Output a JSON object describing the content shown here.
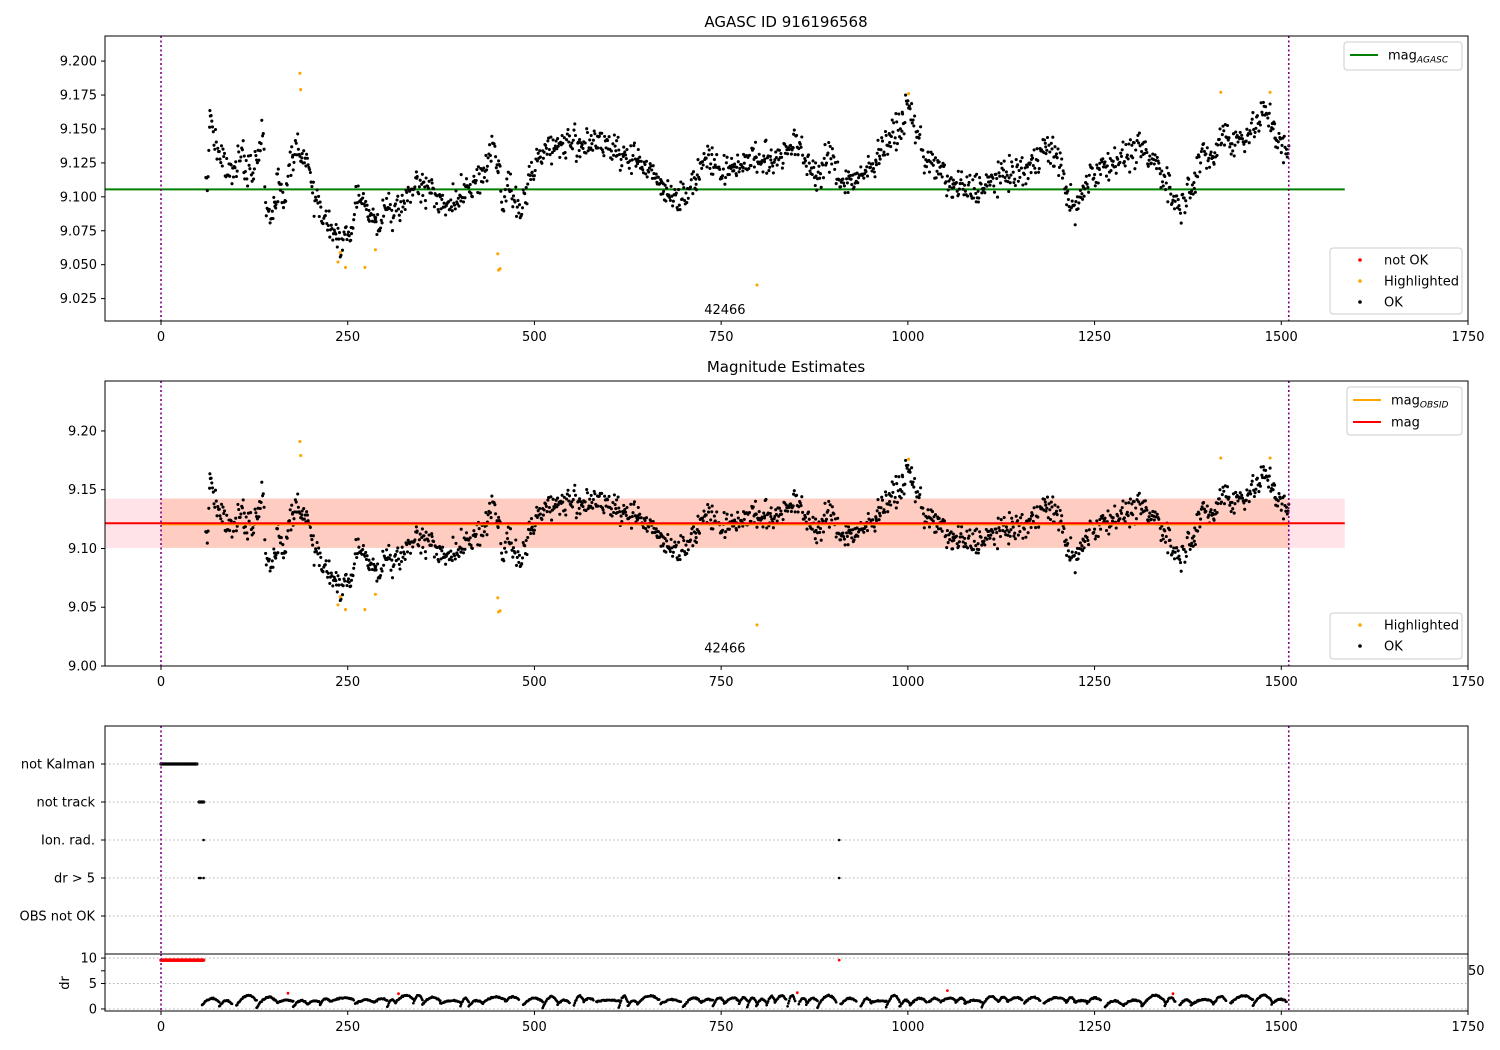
{
  "colors": {
    "ok": "#000000",
    "highlighted": "#ffa500",
    "not_ok": "#ff0000",
    "mag_agasc": "#008000",
    "mag_obsid": "#ffa500",
    "mag": "#ff0000",
    "band_outer": "#ffc0cb",
    "band_inner": "#ffc29a",
    "obs_boundary": "#800080",
    "grid": "#b0b0b0"
  },
  "chart_data": [
    {
      "type": "scatter",
      "title": "AGASC ID 916196568",
      "xlabel": "",
      "ylabel": "",
      "xlim": [
        -75,
        1750
      ],
      "ylim": [
        9.0085,
        9.2185
      ],
      "x_ticks": [
        "0",
        "250",
        "500",
        "750",
        "1000",
        "1250",
        "1500",
        "1750"
      ],
      "y_ticks": [
        "9.025",
        "9.050",
        "9.075",
        "9.100",
        "9.125",
        "9.150",
        "9.175",
        "9.200"
      ],
      "obs_boundaries": [
        0,
        1510
      ],
      "obsid_annotation": {
        "text": "42466",
        "x": 755,
        "y": 9.0135
      },
      "reference_lines": [
        {
          "name": "mag",
          "name_subscript": "AGASC",
          "y": 9.1055,
          "x_range": [
            -75,
            1585
          ],
          "color": "#008000"
        }
      ],
      "series": [
        {
          "name": "not OK",
          "color": "#ff0000",
          "points": []
        },
        {
          "name": "Highlighted",
          "color": "#ffa500",
          "points": [
            [
              186,
              9.191
            ],
            [
              187,
              9.179
            ],
            [
              237,
              9.052
            ],
            [
              240,
              9.059
            ],
            [
              247,
              9.048
            ],
            [
              273,
              9.048
            ],
            [
              287,
              9.061
            ],
            [
              451,
              9.058
            ],
            [
              452,
              9.046
            ],
            [
              454,
              9.047
            ],
            [
              798,
              9.035
            ],
            [
              1001,
              9.176
            ],
            [
              1419,
              9.177
            ],
            [
              1485,
              9.177
            ]
          ]
        },
        {
          "name": "OK",
          "color": "#000000",
          "description": "continuous light curve of ~1450 samples, x 60-1510",
          "anchors": [
            [
              62,
              9.11
            ],
            [
              66,
              9.16
            ],
            [
              72,
              9.14
            ],
            [
              80,
              9.13
            ],
            [
              90,
              9.12
            ],
            [
              105,
              9.13
            ],
            [
              115,
              9.12
            ],
            [
              125,
              9.12
            ],
            [
              137,
              9.15
            ],
            [
              140,
              9.1
            ],
            [
              147,
              9.08
            ],
            [
              157,
              9.11
            ],
            [
              165,
              9.1
            ],
            [
              175,
              9.13
            ],
            [
              182,
              9.14
            ],
            [
              190,
              9.13
            ],
            [
              198,
              9.12
            ],
            [
              206,
              9.1
            ],
            [
              213,
              9.093
            ],
            [
              220,
              9.085
            ],
            [
              228,
              9.073
            ],
            [
              238,
              9.07
            ],
            [
              252,
              9.068
            ],
            [
              262,
              9.1
            ],
            [
              272,
              9.1
            ],
            [
              282,
              9.085
            ],
            [
              292,
              9.075
            ],
            [
              302,
              9.095
            ],
            [
              312,
              9.085
            ],
            [
              322,
              9.09
            ],
            [
              332,
              9.105
            ],
            [
              345,
              9.107
            ],
            [
              360,
              9.105
            ],
            [
              372,
              9.1
            ],
            [
              382,
              9.092
            ],
            [
              392,
              9.095
            ],
            [
              400,
              9.102
            ],
            [
              410,
              9.103
            ],
            [
              420,
              9.112
            ],
            [
              432,
              9.115
            ],
            [
              438,
              9.128
            ],
            [
              445,
              9.143
            ],
            [
              452,
              9.122
            ],
            [
              458,
              9.093
            ],
            [
              466,
              9.113
            ],
            [
              472,
              9.1
            ],
            [
              478,
              9.09
            ],
            [
              485,
              9.09
            ],
            [
              495,
              9.118
            ],
            [
              505,
              9.128
            ],
            [
              515,
              9.135
            ],
            [
              530,
              9.137
            ],
            [
              550,
              9.14
            ],
            [
              575,
              9.138
            ],
            [
              600,
              9.137
            ],
            [
              630,
              9.128
            ],
            [
              650,
              9.122
            ],
            [
              670,
              9.11
            ],
            [
              685,
              9.1
            ],
            [
              700,
              9.1
            ],
            [
              715,
              9.113
            ],
            [
              727,
              9.13
            ],
            [
              740,
              9.128
            ],
            [
              752,
              9.12
            ],
            [
              770,
              9.122
            ],
            [
              790,
              9.128
            ],
            [
              810,
              9.125
            ],
            [
              830,
              9.132
            ],
            [
              850,
              9.14
            ],
            [
              865,
              9.125
            ],
            [
              880,
              9.115
            ],
            [
              895,
              9.13
            ],
            [
              910,
              9.113
            ],
            [
              930,
              9.112
            ],
            [
              950,
              9.122
            ],
            [
              970,
              9.14
            ],
            [
              990,
              9.15
            ],
            [
              1000,
              9.168
            ],
            [
              1010,
              9.15
            ],
            [
              1025,
              9.128
            ],
            [
              1045,
              9.117
            ],
            [
              1060,
              9.106
            ],
            [
              1080,
              9.106
            ],
            [
              1100,
              9.107
            ],
            [
              1120,
              9.113
            ],
            [
              1140,
              9.118
            ],
            [
              1160,
              9.12
            ],
            [
              1180,
              9.135
            ],
            [
              1200,
              9.13
            ],
            [
              1215,
              9.1
            ],
            [
              1222,
              9.09
            ],
            [
              1232,
              9.1
            ],
            [
              1245,
              9.117
            ],
            [
              1265,
              9.125
            ],
            [
              1290,
              9.13
            ],
            [
              1310,
              9.135
            ],
            [
              1330,
              9.125
            ],
            [
              1345,
              9.115
            ],
            [
              1355,
              9.1
            ],
            [
              1365,
              9.095
            ],
            [
              1378,
              9.108
            ],
            [
              1395,
              9.13
            ],
            [
              1410,
              9.128
            ],
            [
              1422,
              9.15
            ],
            [
              1435,
              9.14
            ],
            [
              1450,
              9.145
            ],
            [
              1465,
              9.152
            ],
            [
              1478,
              9.163
            ],
            [
              1487,
              9.158
            ],
            [
              1495,
              9.14
            ],
            [
              1503,
              9.135
            ],
            [
              1509,
              9.128
            ]
          ]
        }
      ],
      "legends": [
        {
          "position": "upper-right",
          "entries": [
            {
              "label": "mag",
              "subscript": "AGASC",
              "marker": "line",
              "color": "#008000"
            }
          ]
        },
        {
          "position": "lower-right",
          "entries": [
            {
              "label": "not OK",
              "marker": "dot",
              "color": "#ff0000"
            },
            {
              "label": "Highlighted",
              "marker": "dot",
              "color": "#ffa500"
            },
            {
              "label": "OK",
              "marker": "dot",
              "color": "#000000"
            }
          ]
        }
      ]
    },
    {
      "type": "scatter",
      "title": "Magnitude Estimates",
      "xlabel": "",
      "ylabel": "",
      "xlim": [
        -75,
        1750
      ],
      "ylim": [
        9.0,
        9.2425
      ],
      "x_ticks": [
        "0",
        "250",
        "500",
        "750",
        "1000",
        "1250",
        "1500",
        "1750"
      ],
      "y_ticks": [
        "9.00",
        "9.05",
        "9.10",
        "9.15",
        "9.20"
      ],
      "obs_boundaries": [
        0,
        1510
      ],
      "obsid_annotation": {
        "text": "42466",
        "x": 755,
        "y": 9.0115
      },
      "bands": [
        {
          "y": [
            9.1005,
            9.1425
          ],
          "x_range": [
            -75,
            1585
          ],
          "color": "#ffc0cb",
          "opacity": 0.45
        },
        {
          "y": [
            9.1005,
            9.1425
          ],
          "x_range": [
            0,
            1510
          ],
          "color": "#ffa07a",
          "opacity": 0.35
        }
      ],
      "reference_lines": [
        {
          "name": "mag",
          "name_subscript": "OBSID",
          "y": 9.1205,
          "x_range": [
            0,
            1510
          ],
          "color": "#ffa500"
        },
        {
          "name": "mag",
          "y": 9.1215,
          "x_range": [
            -75,
            1585
          ],
          "color": "#ff0000"
        }
      ],
      "series": [
        {
          "name": "Highlighted",
          "color": "#ffa500",
          "same_points_as": "panel_1.Highlighted"
        },
        {
          "name": "OK",
          "color": "#000000",
          "same_points_as": "panel_1.OK"
        }
      ],
      "legends": [
        {
          "position": "upper-right",
          "entries": [
            {
              "label": "mag",
              "subscript": "OBSID",
              "marker": "line",
              "color": "#ffa500"
            },
            {
              "label": "mag",
              "marker": "line",
              "color": "#ff0000"
            }
          ]
        },
        {
          "position": "lower-right",
          "entries": [
            {
              "label": "Highlighted",
              "marker": "dot",
              "color": "#ffa500"
            },
            {
              "label": "OK",
              "marker": "dot",
              "color": "#000000"
            }
          ]
        }
      ]
    },
    {
      "type": "scatter",
      "title": "",
      "xlabel": "",
      "ylabel": "",
      "xlim": [
        -75,
        1750
      ],
      "categories": [
        "not Kalman",
        "not track",
        "Ion. rad.",
        "dr > 5",
        "OBS not OK"
      ],
      "grid": "horizontal dotted",
      "obs_boundaries": [
        0,
        1510
      ],
      "flags": [
        {
          "category": "not Kalman",
          "x_ranges": [
            [
              0,
              48
            ]
          ],
          "x_points": []
        },
        {
          "category": "not track",
          "x_ranges": [
            [
              51,
              57
            ]
          ],
          "x_points": []
        },
        {
          "category": "Ion. rad.",
          "x_ranges": [],
          "x_points": [
            57,
            908
          ]
        },
        {
          "category": "dr > 5",
          "x_ranges": [],
          "x_points": [
            51,
            53,
            57,
            908
          ]
        },
        {
          "category": "OBS not OK",
          "x_ranges": [],
          "x_points": []
        }
      ]
    },
    {
      "type": "scatter",
      "title": "",
      "xlabel": "",
      "ylabel": "dr",
      "xlim": [
        -75,
        1750
      ],
      "ylim": [
        -0.4,
        10.8
      ],
      "x_ticks": [
        "0",
        "250",
        "500",
        "750",
        "1000",
        "1250",
        "1500",
        "1750"
      ],
      "y_ticks": [
        "0",
        "5",
        "10"
      ],
      "obs_boundaries": [
        0,
        1510
      ],
      "clipped_tick_label": "50",
      "series": [
        {
          "name": "dr",
          "color": "#000000",
          "description": "sawtooth-like segments between 0.2 and 2.6 over x 55-1510"
        },
        {
          "name": "dr (flagged)",
          "color": "#ff0000",
          "points_at_cap": {
            "x_range": [
              0,
              57
            ],
            "y": 9.6
          },
          "points": [
            [
              170,
              3.1
            ],
            [
              318,
              3.0
            ],
            [
              852,
              3.2
            ],
            [
              908,
              9.6
            ],
            [
              1053,
              3.6
            ],
            [
              1355,
              3.0
            ]
          ]
        }
      ]
    }
  ]
}
